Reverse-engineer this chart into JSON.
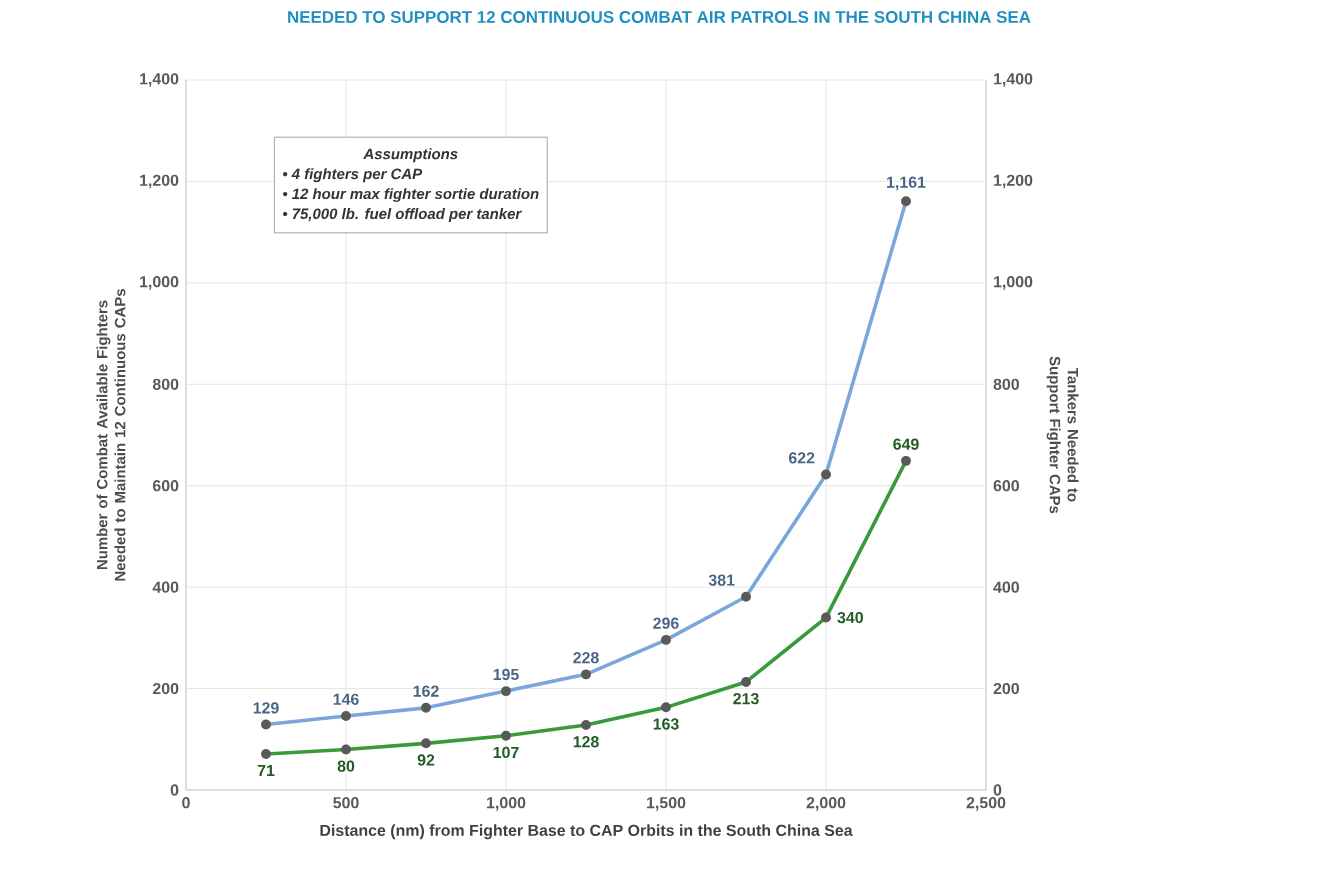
{
  "chart_data": {
    "type": "line",
    "title": "NEEDED TO SUPPORT 12 CONTINUOUS COMBAT AIR PATROLS IN THE SOUTH CHINA SEA",
    "xlabel": "Distance (nm) from Fighter Base to CAP Orbits in the South China Sea",
    "ylabel": "Number of Combat Available Fighters Needed to Maintain 12 Continuous CAPs",
    "y2label": "Tankers Needed to Support Fighter CAPs",
    "x": [
      250,
      500,
      750,
      1000,
      1250,
      1500,
      1750,
      2000,
      2250
    ],
    "series": [
      {
        "color": "#7aa6dc",
        "values": [
          129,
          146,
          162,
          195,
          228,
          296,
          381,
          622,
          1161
        ],
        "value_labels": [
          "129",
          "146",
          "162",
          "195",
          "228",
          "296",
          "381",
          "622",
          "1,161"
        ]
      },
      {
        "color": "#3a9a3a",
        "axis": "y2",
        "values": [
          71,
          80,
          92,
          107,
          128,
          163,
          213,
          340,
          649
        ],
        "value_labels": [
          "71",
          "80",
          "92",
          "107",
          "128",
          "163",
          "213",
          "340",
          "649"
        ]
      }
    ],
    "xlim": [
      0,
      2500
    ],
    "xticks": [
      {
        "value": 0,
        "label": "0"
      },
      {
        "value": 500,
        "label": "500"
      },
      {
        "value": 1000,
        "label": "1,000"
      },
      {
        "value": 1500,
        "label": "1,500"
      },
      {
        "value": 2000,
        "label": "2,000"
      },
      {
        "value": 2500,
        "label": "2,500"
      }
    ],
    "ylim": [
      0,
      1400
    ],
    "yticks": [
      {
        "value": 0,
        "label": "0"
      },
      {
        "value": 200,
        "label": "200"
      },
      {
        "value": 400,
        "label": "400"
      },
      {
        "value": 600,
        "label": "600"
      },
      {
        "value": 800,
        "label": "800"
      },
      {
        "value": 1000,
        "label": "1,000"
      },
      {
        "value": 1200,
        "label": "1,200"
      },
      {
        "value": 1400,
        "label": "1,400"
      }
    ],
    "y2lim": [
      0,
      1400
    ],
    "y2ticks": [
      {
        "value": 0,
        "label": "0"
      },
      {
        "value": 200,
        "label": "200"
      },
      {
        "value": 400,
        "label": "400"
      },
      {
        "value": 600,
        "label": "600"
      },
      {
        "value": 800,
        "label": "800"
      },
      {
        "value": 1000,
        "label": "1,000"
      },
      {
        "value": 1200,
        "label": "1,200"
      },
      {
        "value": 1400,
        "label": "1,400"
      }
    ],
    "annotations": [
      "Assumptions",
      "• 4 fighters per CAP",
      "• 12 hour max fighter sortie duration",
      "• 75,000 lb. fuel offload per tanker"
    ],
    "grid": true,
    "marker": "circle",
    "line_style": "solid"
  }
}
